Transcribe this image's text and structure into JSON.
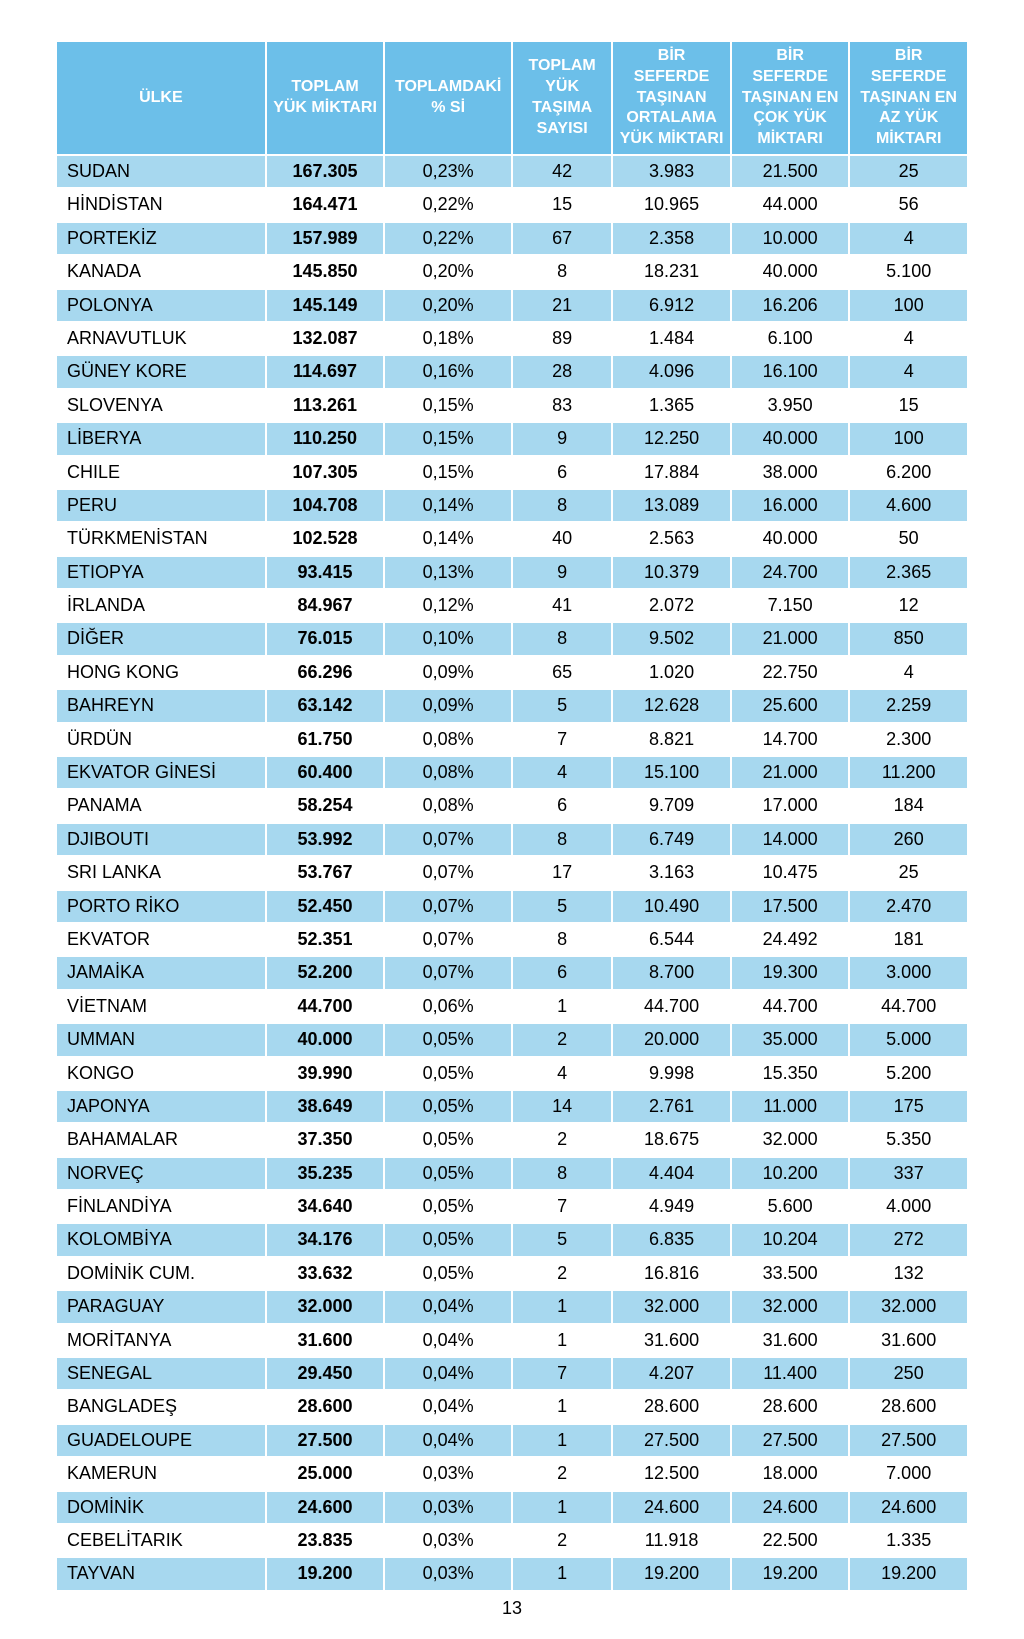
{
  "colors": {
    "header_bg": "#6cbfe9",
    "header_text": "#ffffff",
    "row_even_bg": "#a7d8ef",
    "row_odd_bg": "#ffffff",
    "text": "#000000",
    "border": "#ffffff"
  },
  "pageNumber": "13",
  "table": {
    "columns": [
      "ÜLKE",
      "TOPLAM YÜK MİKTARI",
      "TOPLAMDAKİ % Sİ",
      "TOPLAM YÜK TAŞIMA SAYISI",
      "BİR SEFERDE TAŞINAN ORTALAMA YÜK MİKTARI",
      "BİR SEFERDE TAŞINAN EN ÇOK YÜK MİKTARI",
      "BİR SEFERDE TAŞINAN EN AZ YÜK MİKTARI"
    ],
    "rows": [
      [
        "SUDAN",
        "167.305",
        "0,23%",
        "42",
        "3.983",
        "21.500",
        "25"
      ],
      [
        "HİNDİSTAN",
        "164.471",
        "0,22%",
        "15",
        "10.965",
        "44.000",
        "56"
      ],
      [
        "PORTEKİZ",
        "157.989",
        "0,22%",
        "67",
        "2.358",
        "10.000",
        "4"
      ],
      [
        "KANADA",
        "145.850",
        "0,20%",
        "8",
        "18.231",
        "40.000",
        "5.100"
      ],
      [
        "POLONYA",
        "145.149",
        "0,20%",
        "21",
        "6.912",
        "16.206",
        "100"
      ],
      [
        "ARNAVUTLUK",
        "132.087",
        "0,18%",
        "89",
        "1.484",
        "6.100",
        "4"
      ],
      [
        "GÜNEY KORE",
        "114.697",
        "0,16%",
        "28",
        "4.096",
        "16.100",
        "4"
      ],
      [
        "SLOVENYA",
        "113.261",
        "0,15%",
        "83",
        "1.365",
        "3.950",
        "15"
      ],
      [
        "LİBERYA",
        "110.250",
        "0,15%",
        "9",
        "12.250",
        "40.000",
        "100"
      ],
      [
        "CHILE",
        "107.305",
        "0,15%",
        "6",
        "17.884",
        "38.000",
        "6.200"
      ],
      [
        "PERU",
        "104.708",
        "0,14%",
        "8",
        "13.089",
        "16.000",
        "4.600"
      ],
      [
        "TÜRKMENİSTAN",
        "102.528",
        "0,14%",
        "40",
        "2.563",
        "40.000",
        "50"
      ],
      [
        "ETIOPYA",
        "93.415",
        "0,13%",
        "9",
        "10.379",
        "24.700",
        "2.365"
      ],
      [
        "İRLANDA",
        "84.967",
        "0,12%",
        "41",
        "2.072",
        "7.150",
        "12"
      ],
      [
        "DİĞER",
        "76.015",
        "0,10%",
        "8",
        "9.502",
        "21.000",
        "850"
      ],
      [
        "HONG KONG",
        "66.296",
        "0,09%",
        "65",
        "1.020",
        "22.750",
        "4"
      ],
      [
        "BAHREYN",
        "63.142",
        "0,09%",
        "5",
        "12.628",
        "25.600",
        "2.259"
      ],
      [
        "ÜRDÜN",
        "61.750",
        "0,08%",
        "7",
        "8.821",
        "14.700",
        "2.300"
      ],
      [
        "EKVATOR GİNESİ",
        "60.400",
        "0,08%",
        "4",
        "15.100",
        "21.000",
        "11.200"
      ],
      [
        "PANAMA",
        "58.254",
        "0,08%",
        "6",
        "9.709",
        "17.000",
        "184"
      ],
      [
        "DJIBOUTI",
        "53.992",
        "0,07%",
        "8",
        "6.749",
        "14.000",
        "260"
      ],
      [
        "SRI LANKA",
        "53.767",
        "0,07%",
        "17",
        "3.163",
        "10.475",
        "25"
      ],
      [
        "PORTO RİKO",
        "52.450",
        "0,07%",
        "5",
        "10.490",
        "17.500",
        "2.470"
      ],
      [
        "EKVATOR",
        "52.351",
        "0,07%",
        "8",
        "6.544",
        "24.492",
        "181"
      ],
      [
        "JAMAİKA",
        "52.200",
        "0,07%",
        "6",
        "8.700",
        "19.300",
        "3.000"
      ],
      [
        "VİETNAM",
        "44.700",
        "0,06%",
        "1",
        "44.700",
        "44.700",
        "44.700"
      ],
      [
        "UMMAN",
        "40.000",
        "0,05%",
        "2",
        "20.000",
        "35.000",
        "5.000"
      ],
      [
        "KONGO",
        "39.990",
        "0,05%",
        "4",
        "9.998",
        "15.350",
        "5.200"
      ],
      [
        "JAPONYA",
        "38.649",
        "0,05%",
        "14",
        "2.761",
        "11.000",
        "175"
      ],
      [
        "BAHAMALAR",
        "37.350",
        "0,05%",
        "2",
        "18.675",
        "32.000",
        "5.350"
      ],
      [
        "NORVEÇ",
        "35.235",
        "0,05%",
        "8",
        "4.404",
        "10.200",
        "337"
      ],
      [
        "FİNLANDİYA",
        "34.640",
        "0,05%",
        "7",
        "4.949",
        "5.600",
        "4.000"
      ],
      [
        "KOLOMBİYA",
        "34.176",
        "0,05%",
        "5",
        "6.835",
        "10.204",
        "272"
      ],
      [
        "DOMİNİK CUM.",
        "33.632",
        "0,05%",
        "2",
        "16.816",
        "33.500",
        "132"
      ],
      [
        "PARAGUAY",
        "32.000",
        "0,04%",
        "1",
        "32.000",
        "32.000",
        "32.000"
      ],
      [
        "MORİTANYA",
        "31.600",
        "0,04%",
        "1",
        "31.600",
        "31.600",
        "31.600"
      ],
      [
        "SENEGAL",
        "29.450",
        "0,04%",
        "7",
        "4.207",
        "11.400",
        "250"
      ],
      [
        "BANGLADEŞ",
        "28.600",
        "0,04%",
        "1",
        "28.600",
        "28.600",
        "28.600"
      ],
      [
        "GUADELOUPE",
        "27.500",
        "0,04%",
        "1",
        "27.500",
        "27.500",
        "27.500"
      ],
      [
        "KAMERUN",
        "25.000",
        "0,03%",
        "2",
        "12.500",
        "18.000",
        "7.000"
      ],
      [
        "DOMİNİK",
        "24.600",
        "0,03%",
        "1",
        "24.600",
        "24.600",
        "24.600"
      ],
      [
        "CEBELİTARIK",
        "23.835",
        "0,03%",
        "2",
        "11.918",
        "22.500",
        "1.335"
      ],
      [
        "TAYVAN",
        "19.200",
        "0,03%",
        "1",
        "19.200",
        "19.200",
        "19.200"
      ]
    ]
  }
}
